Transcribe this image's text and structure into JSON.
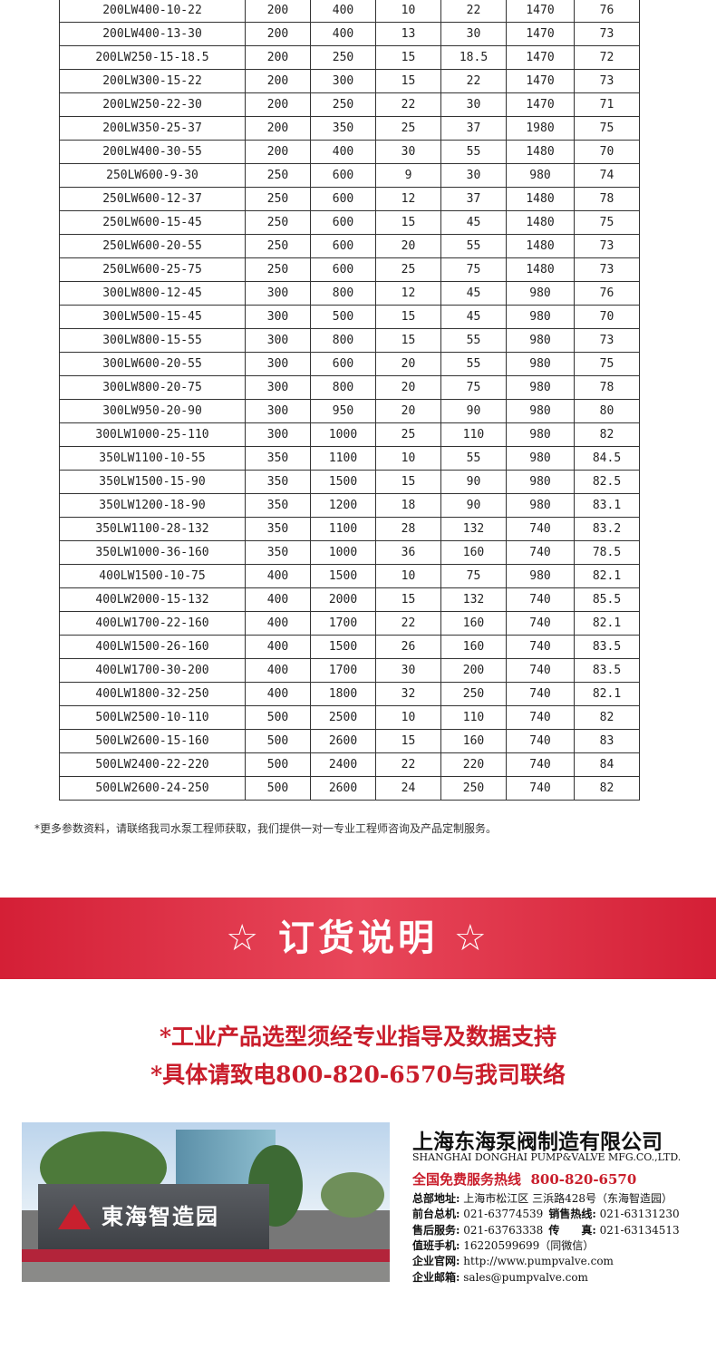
{
  "table": {
    "rows": [
      [
        "200LW400-10-22",
        "200",
        "400",
        "10",
        "22",
        "1470",
        "76"
      ],
      [
        "200LW400-13-30",
        "200",
        "400",
        "13",
        "30",
        "1470",
        "73"
      ],
      [
        "200LW250-15-18.5",
        "200",
        "250",
        "15",
        "18.5",
        "1470",
        "72"
      ],
      [
        "200LW300-15-22",
        "200",
        "300",
        "15",
        "22",
        "1470",
        "73"
      ],
      [
        "200LW250-22-30",
        "200",
        "250",
        "22",
        "30",
        "1470",
        "71"
      ],
      [
        "200LW350-25-37",
        "200",
        "350",
        "25",
        "37",
        "1980",
        "75"
      ],
      [
        "200LW400-30-55",
        "200",
        "400",
        "30",
        "55",
        "1480",
        "70"
      ],
      [
        "250LW600-9-30",
        "250",
        "600",
        "9",
        "30",
        "980",
        "74"
      ],
      [
        "250LW600-12-37",
        "250",
        "600",
        "12",
        "37",
        "1480",
        "78"
      ],
      [
        "250LW600-15-45",
        "250",
        "600",
        "15",
        "45",
        "1480",
        "75"
      ],
      [
        "250LW600-20-55",
        "250",
        "600",
        "20",
        "55",
        "1480",
        "73"
      ],
      [
        "250LW600-25-75",
        "250",
        "600",
        "25",
        "75",
        "1480",
        "73"
      ],
      [
        "300LW800-12-45",
        "300",
        "800",
        "12",
        "45",
        "980",
        "76"
      ],
      [
        "300LW500-15-45",
        "300",
        "500",
        "15",
        "45",
        "980",
        "70"
      ],
      [
        "300LW800-15-55",
        "300",
        "800",
        "15",
        "55",
        "980",
        "73"
      ],
      [
        "300LW600-20-55",
        "300",
        "600",
        "20",
        "55",
        "980",
        "75"
      ],
      [
        "300LW800-20-75",
        "300",
        "800",
        "20",
        "75",
        "980",
        "78"
      ],
      [
        "300LW950-20-90",
        "300",
        "950",
        "20",
        "90",
        "980",
        "80"
      ],
      [
        "300LW1000-25-110",
        "300",
        "1000",
        "25",
        "110",
        "980",
        "82"
      ],
      [
        "350LW1100-10-55",
        "350",
        "1100",
        "10",
        "55",
        "980",
        "84.5"
      ],
      [
        "350LW1500-15-90",
        "350",
        "1500",
        "15",
        "90",
        "980",
        "82.5"
      ],
      [
        "350LW1200-18-90",
        "350",
        "1200",
        "18",
        "90",
        "980",
        "83.1"
      ],
      [
        "350LW1100-28-132",
        "350",
        "1100",
        "28",
        "132",
        "740",
        "83.2"
      ],
      [
        "350LW1000-36-160",
        "350",
        "1000",
        "36",
        "160",
        "740",
        "78.5"
      ],
      [
        "400LW1500-10-75",
        "400",
        "1500",
        "10",
        "75",
        "980",
        "82.1"
      ],
      [
        "400LW2000-15-132",
        "400",
        "2000",
        "15",
        "132",
        "740",
        "85.5"
      ],
      [
        "400LW1700-22-160",
        "400",
        "1700",
        "22",
        "160",
        "740",
        "82.1"
      ],
      [
        "400LW1500-26-160",
        "400",
        "1500",
        "26",
        "160",
        "740",
        "83.5"
      ],
      [
        "400LW1700-30-200",
        "400",
        "1700",
        "30",
        "200",
        "740",
        "83.5"
      ],
      [
        "400LW1800-32-250",
        "400",
        "1800",
        "32",
        "250",
        "740",
        "82.1"
      ],
      [
        "500LW2500-10-110",
        "500",
        "2500",
        "10",
        "110",
        "740",
        "82"
      ],
      [
        "500LW2600-15-160",
        "500",
        "2600",
        "15",
        "160",
        "740",
        "83"
      ],
      [
        "500LW2400-22-220",
        "500",
        "2400",
        "22",
        "220",
        "740",
        "84"
      ],
      [
        "500LW2600-24-250",
        "500",
        "2600",
        "24",
        "250",
        "740",
        "82"
      ]
    ]
  },
  "footnote": "*更多参数资料，请联络我司水泵工程师获取，我们提供一对一专业工程师咨询及产品定制服务。",
  "banner": {
    "title": "☆ 订货说明 ☆"
  },
  "order": {
    "lines": [
      "*工业产品选型须经专业指导及数据支持",
      "*具体请致电800-820-6570与我司联络"
    ]
  },
  "photo": {
    "sign": "東海智造园"
  },
  "company": {
    "name": "上海东海泵阀制造有限公司",
    "english": "SHANGHAI DONGHAI PUMP&VALVE MFG.CO.,LTD.",
    "hotline_label": "全国免费服务热线",
    "hotline": "800-820-6570",
    "contacts": [
      [
        [
          "总部地址:",
          "上海市松江区 三浜路428号（东海智造园）"
        ]
      ],
      [
        [
          "前台总机:",
          "021-63774539"
        ],
        [
          "销售热线:",
          "021-63131230"
        ]
      ],
      [
        [
          "售后服务:",
          "021-63763338"
        ],
        [
          "传　　真:",
          "021-63134513"
        ]
      ],
      [
        [
          "值班手机:",
          "16220599699（同微信）"
        ]
      ],
      [
        [
          "企业官网:",
          "http://www.pumpvalve.com"
        ]
      ],
      [
        [
          "企业邮箱:",
          "sales@pumpvalve.com"
        ]
      ]
    ]
  }
}
